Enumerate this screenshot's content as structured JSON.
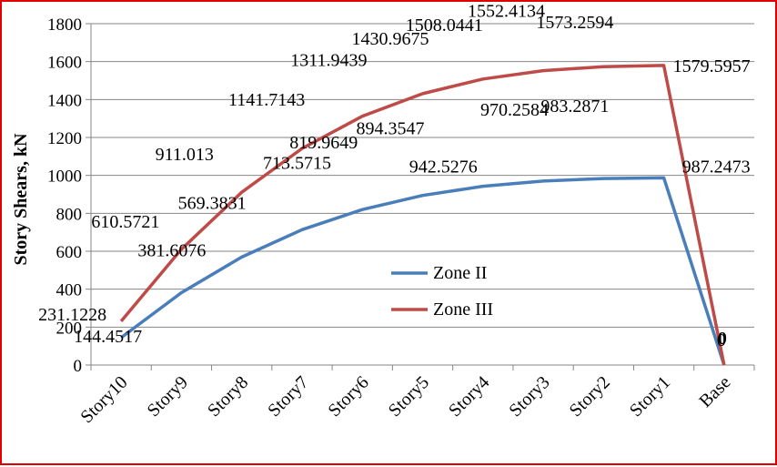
{
  "chart_data": {
    "type": "line",
    "title": "",
    "xlabel": "",
    "ylabel": "Story Shears, kN",
    "categories": [
      "Story10",
      "Story9",
      "Story8",
      "Story7",
      "Story6",
      "Story5",
      "Story4",
      "Story3",
      "Story2",
      "Story1",
      "Base"
    ],
    "ylim": [
      0,
      1800
    ],
    "yticks": [
      "0",
      "200",
      "400",
      "600",
      "800",
      "1000",
      "1200",
      "1400",
      "1600",
      "1800"
    ],
    "grid": true,
    "legend_position": "center",
    "series": [
      {
        "name": "Zone II",
        "color": "#4a7ebb",
        "values": [
          144.4517,
          381.6076,
          569.3831,
          713.5715,
          819.9649,
          894.3547,
          942.5276,
          970.2584,
          983.2871,
          987.2473,
          0
        ],
        "labels": [
          "144.4517",
          "381.6076",
          "569.3831",
          "713.5715",
          "819.9649",
          "894.3547",
          "942.5276",
          "970.2584",
          "983.2871",
          "987.2473",
          "0"
        ]
      },
      {
        "name": "Zone III",
        "color": "#be4b48",
        "values": [
          231.1228,
          610.5721,
          911.013,
          1141.7143,
          1311.9439,
          1430.9675,
          1508.0441,
          1552.4134,
          1573.2594,
          1579.5957,
          0
        ],
        "labels": [
          "231.1228",
          "610.5721",
          "911.013",
          "1141.7143",
          "1311.9439",
          "1430.9675",
          "1508.0441",
          "1552.4134",
          "1573.2594",
          "1579.5957",
          "0"
        ]
      }
    ]
  }
}
